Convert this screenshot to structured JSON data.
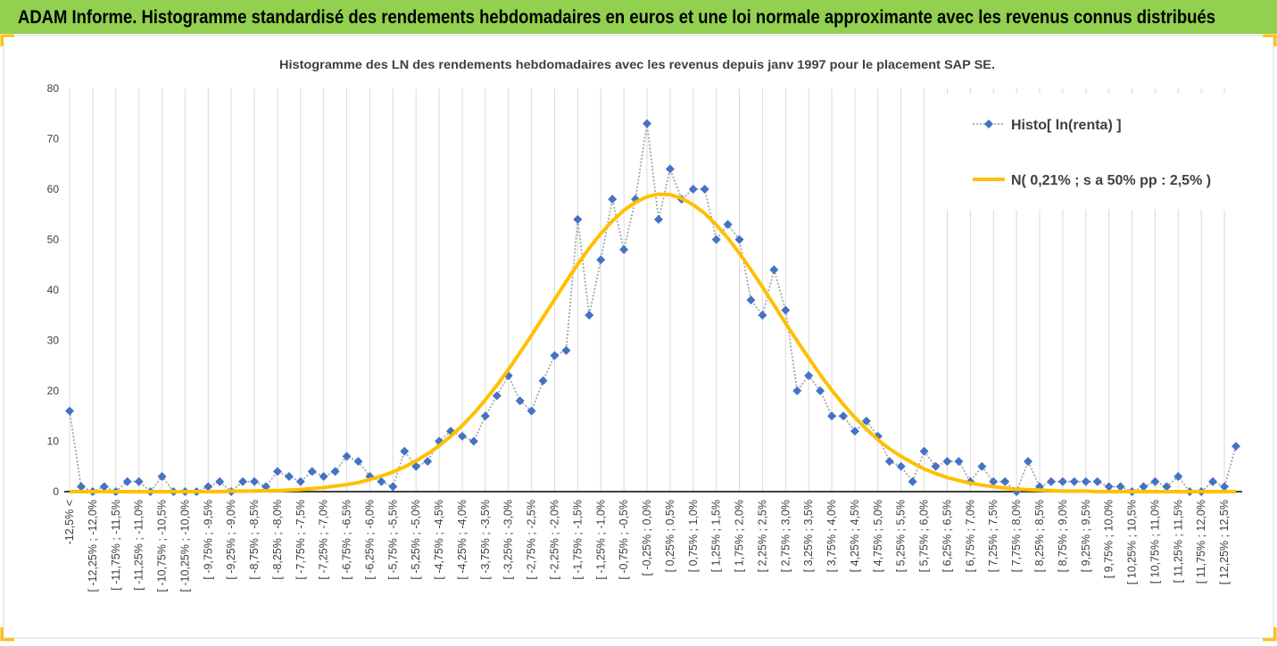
{
  "header": {
    "title": "ADAM Informe. Histogramme standardisé des rendements hebdomadaires en euros et une loi normale approximante avec les revenus connus distribués"
  },
  "chart_data": {
    "type": "line",
    "title": "Histogramme des LN des rendements hebdomadaires avec les revenus depuis janv 1997 pour le placement SAP SE.",
    "categories": [
      "-12,5% <",
      null,
      "[ -12,25% ; -12,0%",
      null,
      "[ -11,75% ; -11,5%",
      null,
      "[ -11,25% ; -11,0%",
      null,
      "[ -10,75% ; -10,5%",
      null,
      "[ -10,25% ; -10,0%",
      null,
      "[ -9,75% ; -9,5%",
      null,
      "[ -9,25% ; -9,0%",
      null,
      "[ -8,75% ; -8,5%",
      null,
      "[ -8,25% ; -8,0%",
      null,
      "[ -7,75% ; -7,5%",
      null,
      "[ -7,25% ; -7,0%",
      null,
      "[ -6,75% ; -6,5%",
      null,
      "[ -6,25% ; -6,0%",
      null,
      "[ -5,75% ; -5,5%",
      null,
      "[ -5,25% ; -5,0%",
      null,
      "[ -4,75% ; -4,5%",
      null,
      "[ -4,25% ; -4,0%",
      null,
      "[ -3,75% ; -3,5%",
      null,
      "[ -3,25% ; -3,0%",
      null,
      "[ -2,75% ; -2,5%",
      null,
      "[ -2,25% ; -2,0%",
      null,
      "[ -1,75% ; -1,5%",
      null,
      "[ -1,25% ; -1,0%",
      null,
      "[ -0,75% ; -0,5%",
      null,
      "[ -0,25% ; 0,0%",
      null,
      "[ 0,25% ; 0,5%",
      null,
      "[ 0,75% ; 1,0%",
      null,
      "[ 1,25% ; 1,5%",
      null,
      "[ 1,75% ; 2,0%",
      null,
      "[ 2,25% ; 2,5%",
      null,
      "[ 2,75% ; 3,0%",
      null,
      "[ 3,25% ; 3,5%",
      null,
      "[ 3,75% ; 4,0%",
      null,
      "[ 4,25% ; 4,5%",
      null,
      "[ 4,75% ; 5,0%",
      null,
      "[ 5,25% ; 5,5%",
      null,
      "[ 5,75% ; 6,0%",
      null,
      "[ 6,25% ; 6,5%",
      null,
      "[ 6,75% ; 7,0%",
      null,
      "[ 7,25% ; 7,5%",
      null,
      "[ 7,75% ; 8,0%",
      null,
      "[ 8,25% ; 8,5%",
      null,
      "[ 8,75% ; 9,0%",
      null,
      "[ 9,25% ; 9,5%",
      null,
      "[ 9,75% ; 10,0%",
      null,
      "[ 10,25% ; 10,5%",
      null,
      "[ 10,75% ; 11,0%",
      null,
      "[ 11,25% ; 11,5%",
      null,
      "[ 11,75% ; 12,0%",
      null,
      "[ 12,25% ; 12,5%",
      null
    ],
    "series": [
      {
        "name": "Histo[ ln(renta) ]",
        "color": "#4472c4",
        "line_color": "#a6a6a6",
        "marker": "diamond",
        "values": [
          16,
          1,
          0,
          1,
          0,
          2,
          2,
          0,
          3,
          0,
          0,
          0,
          1,
          2,
          0,
          2,
          2,
          1,
          4,
          3,
          2,
          4,
          3,
          4,
          7,
          6,
          3,
          2,
          1,
          8,
          5,
          6,
          10,
          12,
          11,
          10,
          15,
          19,
          23,
          18,
          16,
          22,
          27,
          28,
          54,
          35,
          46,
          58,
          48,
          58,
          73,
          54,
          64,
          58,
          60,
          60,
          50,
          53,
          50,
          38,
          35,
          44,
          36,
          20,
          23,
          20,
          15,
          15,
          12,
          14,
          11,
          6,
          5,
          2,
          8,
          5,
          6,
          6,
          2,
          5,
          2,
          2,
          0,
          6,
          1,
          2,
          2,
          2,
          2,
          2,
          1,
          1,
          0,
          1,
          2,
          1,
          3,
          0,
          0,
          2,
          1,
          9
        ]
      },
      {
        "name": "N( 0,21% ; s a 50% pp : 2,5% )",
        "color": "#ffc000",
        "values": [
          0,
          0,
          0,
          0,
          0,
          0,
          0,
          0,
          0,
          0,
          0,
          0,
          0,
          0,
          0.1,
          0.1,
          0.1,
          0.2,
          0.2,
          0.3,
          0.4,
          0.6,
          0.8,
          1.1,
          1.4,
          1.8,
          2.4,
          3.1,
          3.9,
          4.9,
          6.1,
          7.5,
          9.1,
          11.0,
          13.1,
          15.5,
          18.2,
          21.1,
          24.2,
          27.6,
          31.0,
          34.6,
          38.1,
          41.7,
          45.1,
          48.3,
          51.2,
          53.7,
          55.8,
          57.4,
          58.5,
          59.0,
          58.9,
          58.2,
          56.9,
          55.2,
          52.9,
          50.3,
          47.3,
          44.0,
          40.6,
          37.0,
          33.4,
          29.9,
          26.5,
          23.2,
          20.1,
          17.3,
          14.7,
          12.4,
          10.3,
          8.5,
          7.0,
          5.7,
          4.5,
          3.6,
          2.8,
          2.2,
          1.7,
          1.3,
          1.0,
          0.7,
          0.5,
          0.4,
          0.3,
          0.2,
          0.1,
          0.1,
          0.1,
          0,
          0,
          0,
          0,
          0,
          0,
          0,
          0,
          0,
          0,
          0,
          0,
          0
        ]
      }
    ],
    "ylim": [
      0,
      80
    ],
    "yticks": [
      0,
      10,
      20,
      30,
      40,
      50,
      60,
      70,
      80
    ],
    "grid": "x",
    "legend": "upper right"
  }
}
